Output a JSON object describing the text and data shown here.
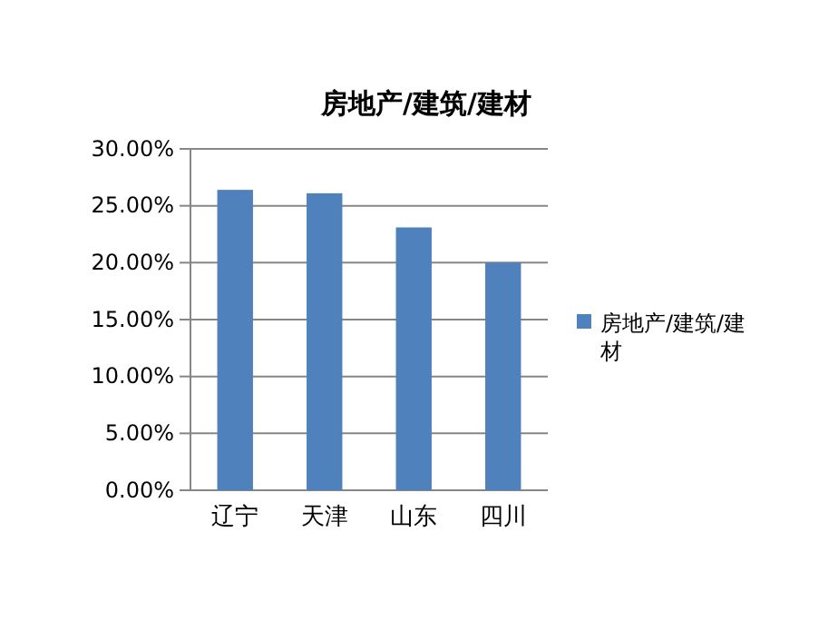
{
  "chart_data": {
    "type": "bar",
    "title": "房地产/建筑/建材",
    "categories": [
      "辽宁",
      "天津",
      "山东",
      "四川"
    ],
    "series": [
      {
        "name": "房地产/建筑/建材",
        "color": "#4f81bd",
        "values": [
          26.4,
          26.1,
          23.1,
          20.0
        ]
      }
    ],
    "ylim": [
      0,
      30
    ],
    "yticks": [
      {
        "value": 0,
        "label": "0.00%"
      },
      {
        "value": 5,
        "label": "5.00%"
      },
      {
        "value": 10,
        "label": "10.00%"
      },
      {
        "value": 15,
        "label": "15.00%"
      },
      {
        "value": 20,
        "label": "20.00%"
      },
      {
        "value": 25,
        "label": "25.00%"
      },
      {
        "value": 30,
        "label": "30.00%"
      }
    ],
    "grid": "y",
    "legend": "right"
  }
}
